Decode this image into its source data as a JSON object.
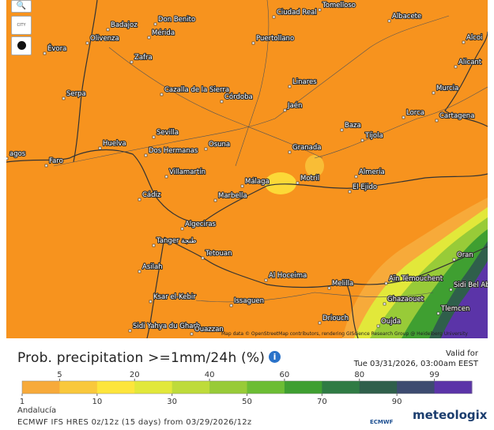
{
  "map": {
    "cities": [
      "Badajoz",
      "Don Benito",
      "Ciudad Real",
      "Tomelloso",
      "Albacete",
      "Olivenza",
      "Mérida",
      "Puertollano",
      "Alcoi",
      "Évora",
      "Zafra",
      "Alicant",
      "Linares",
      "Murcia",
      "Serpa",
      "Cazalla de la Sierra",
      "Córdoba",
      "Jaén",
      "Lorca",
      "Cartagena",
      "Baza",
      "Sevilla",
      "Tíjola",
      "Huelva",
      "Osuna",
      "Granada",
      "Dos Hermanas",
      "Faro",
      "Villamartín",
      "Almería",
      "Málaga",
      "Motril",
      "El Ejido",
      "Cádiz",
      "Marbella",
      "Algeciras",
      "Tanger طنجة",
      "Tetouan",
      "Oran",
      "Asilah",
      "Al Hoceima",
      "Aïn Témouchent",
      "Sidi Bel Abbès",
      "Melilla",
      "Ksar el-Kebir",
      "Issaguen",
      "Ghazaouet",
      "Tlemcen",
      "Driouch",
      "Oujda",
      "Sidi Yahya du Gharb",
      "Ouazzan",
      "agos"
    ],
    "city_button": "CITY",
    "attribution": "Map data © OpenStreetMap contributors, rendering GIScience Research Group @ Heidelberg University"
  },
  "header": {
    "title": "Prob. precipitation >=1mm/24h (%)",
    "valid_label": "Valid for",
    "valid_time": "Tue 03/31/2026, 03:00am EEST"
  },
  "legend": {
    "ticks_top": [
      5,
      20,
      40,
      60,
      80,
      99
    ],
    "ticks_bottom": [
      1,
      10,
      30,
      50,
      70,
      90
    ],
    "colors": [
      "#f7aa3a",
      "#f9c83c",
      "#fde53c",
      "#e2e83a",
      "#bedb3a",
      "#98cb38",
      "#6cbd34",
      "#3f9f31",
      "#2f7b44",
      "#2f5f4b",
      "#3d4b70",
      "#5b34a8"
    ]
  },
  "footer": {
    "region": "Andalucía",
    "model": "ECMWF IFS HRES 0z/12z (15 days) from 03/29/2026/12z",
    "logo_ecmwf": "ECMWF",
    "logo_brand": "meteologix"
  }
}
